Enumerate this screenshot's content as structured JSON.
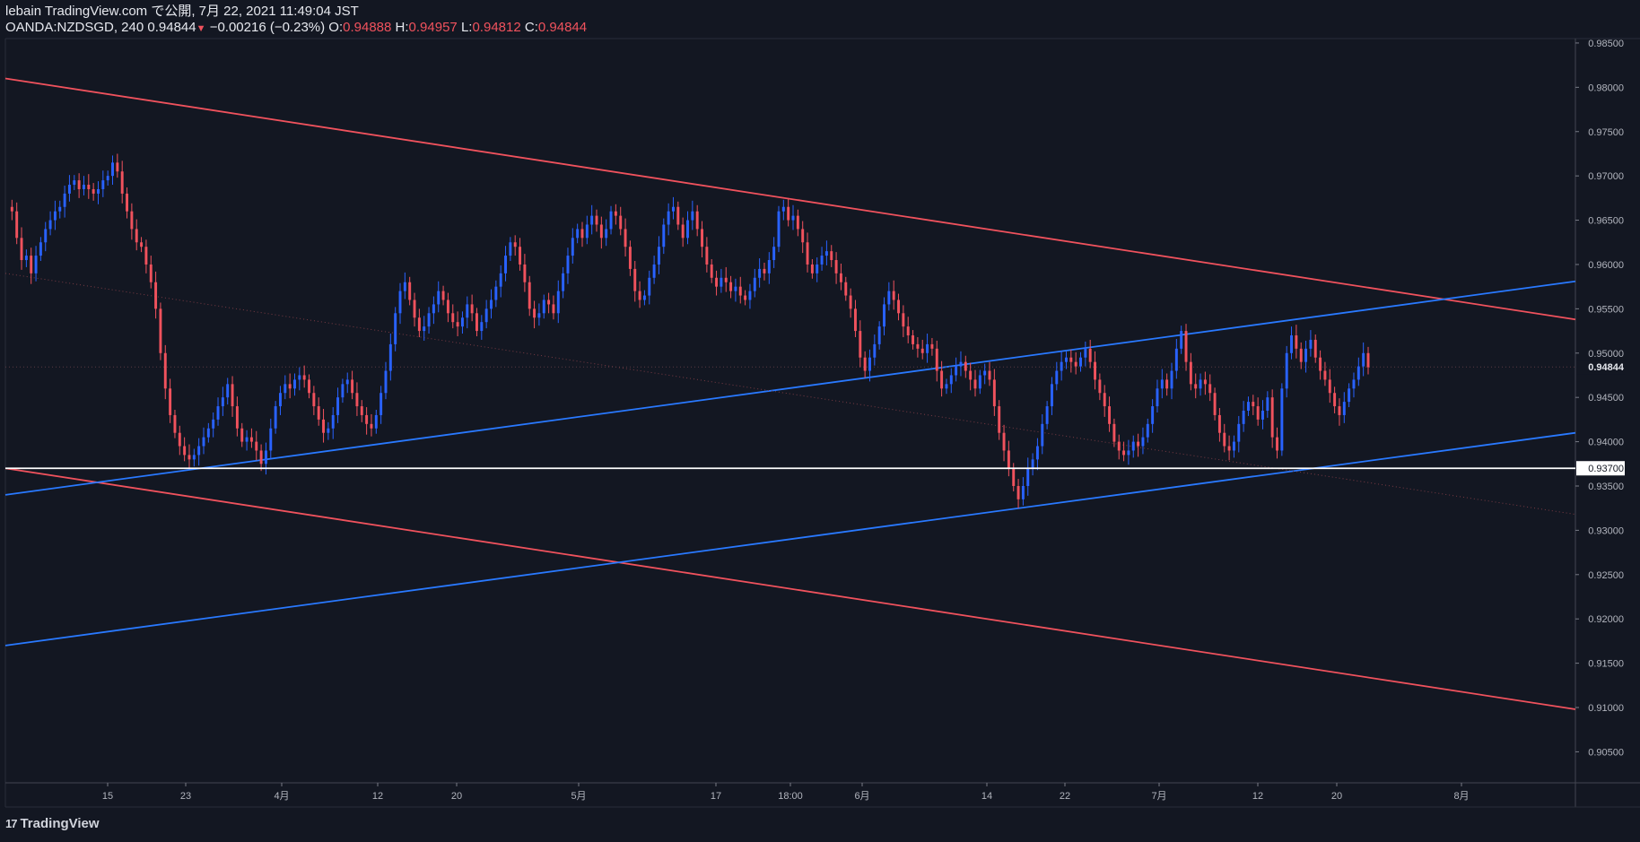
{
  "header": {
    "line1": "lebain TradingView.com で公開, 7月 22, 2021 11:49:04 JST",
    "symbol": "OANDA:NZDSGD, 240",
    "price": "0.94844",
    "change": "−0.00216 (−0.23%)",
    "o_label": "O:",
    "o_value": "0.94888",
    "h_label": "H:",
    "h_value": "0.94957",
    "l_label": "L:",
    "l_value": "0.94812",
    "c_label": "C:",
    "c_value": "0.94844"
  },
  "footer": {
    "brand": "TradingView"
  },
  "colors": {
    "background": "#131722",
    "up": "#2962ff",
    "down": "#f0525d",
    "red_line": "#f0525d",
    "blue_line": "#2979ff",
    "support": "#ffffff"
  },
  "chart_data": {
    "type": "line",
    "symbol": "OANDA:NZDSGD",
    "interval": "240",
    "ylim": [
      0.9015,
      0.9855
    ],
    "y_ticks": [
      "0.98500",
      "0.98000",
      "0.97500",
      "0.97000",
      "0.96500",
      "0.96000",
      "0.95500",
      "0.95000",
      "0.94500",
      "0.94000",
      "0.93500",
      "0.93000",
      "0.92500",
      "0.92000",
      "0.91500",
      "0.91000",
      "0.90500"
    ],
    "x_ticks": [
      "15",
      "23",
      "4月",
      "12",
      "20",
      "5月",
      "17",
      "18:00",
      "6月",
      "14",
      "22",
      "7月",
      "12",
      "20",
      "8月"
    ],
    "last_price": "0.94844",
    "support_label": "0.93700",
    "support_level": 0.937,
    "series": [
      {
        "values": [
          0.9665,
          0.966,
          0.963,
          0.9605,
          0.961,
          0.959,
          0.961,
          0.9625,
          0.964,
          0.965,
          0.966,
          0.9665,
          0.968,
          0.969,
          0.9695,
          0.9685,
          0.969,
          0.9685,
          0.968,
          0.9685,
          0.9695,
          0.97,
          0.9715,
          0.9705,
          0.968,
          0.966,
          0.964,
          0.9625,
          0.962,
          0.96,
          0.958,
          0.955,
          0.95,
          0.946,
          0.943,
          0.941,
          0.9395,
          0.9385,
          0.938,
          0.9385,
          0.9395,
          0.9405,
          0.9415,
          0.9425,
          0.944,
          0.945,
          0.9465,
          0.944,
          0.9415,
          0.94,
          0.9405,
          0.94,
          0.939,
          0.9375,
          0.939,
          0.9415,
          0.944,
          0.9455,
          0.9465,
          0.946,
          0.947,
          0.9475,
          0.947,
          0.9455,
          0.944,
          0.9425,
          0.941,
          0.9415,
          0.943,
          0.945,
          0.9465,
          0.947,
          0.9455,
          0.944,
          0.943,
          0.942,
          0.9415,
          0.943,
          0.9455,
          0.948,
          0.951,
          0.9545,
          0.957,
          0.958,
          0.956,
          0.954,
          0.9525,
          0.953,
          0.9545,
          0.9555,
          0.957,
          0.956,
          0.9545,
          0.9535,
          0.953,
          0.954,
          0.9555,
          0.9545,
          0.9525,
          0.9535,
          0.955,
          0.956,
          0.9575,
          0.959,
          0.961,
          0.9625,
          0.962,
          0.96,
          0.958,
          0.955,
          0.954,
          0.9545,
          0.956,
          0.9555,
          0.9545,
          0.957,
          0.959,
          0.961,
          0.963,
          0.964,
          0.963,
          0.9645,
          0.9655,
          0.9645,
          0.963,
          0.964,
          0.966,
          0.9655,
          0.964,
          0.962,
          0.9595,
          0.957,
          0.956,
          0.9565,
          0.9585,
          0.96,
          0.962,
          0.9645,
          0.966,
          0.9665,
          0.9645,
          0.963,
          0.965,
          0.966,
          0.964,
          0.962,
          0.96,
          0.9585,
          0.9575,
          0.9585,
          0.958,
          0.957,
          0.9575,
          0.9565,
          0.956,
          0.957,
          0.9585,
          0.9595,
          0.959,
          0.9605,
          0.962,
          0.966,
          0.9665,
          0.965,
          0.9655,
          0.964,
          0.9625,
          0.96,
          0.959,
          0.96,
          0.961,
          0.9615,
          0.9605,
          0.959,
          0.958,
          0.9565,
          0.955,
          0.9525,
          0.9495,
          0.948,
          0.9495,
          0.951,
          0.953,
          0.9555,
          0.957,
          0.956,
          0.9545,
          0.953,
          0.952,
          0.951,
          0.9505,
          0.95,
          0.951,
          0.9505,
          0.948,
          0.946,
          0.9465,
          0.9475,
          0.9485,
          0.949,
          0.948,
          0.947,
          0.946,
          0.9475,
          0.948,
          0.947,
          0.944,
          0.941,
          0.939,
          0.937,
          0.935,
          0.9335,
          0.935,
          0.937,
          0.938,
          0.9395,
          0.942,
          0.944,
          0.9465,
          0.948,
          0.949,
          0.9495,
          0.949,
          0.9485,
          0.9495,
          0.9505,
          0.949,
          0.947,
          0.9455,
          0.944,
          0.942,
          0.94,
          0.939,
          0.9385,
          0.939,
          0.94,
          0.9395,
          0.9405,
          0.942,
          0.944,
          0.946,
          0.947,
          0.946,
          0.948,
          0.9505,
          0.9525,
          0.949,
          0.9465,
          0.946,
          0.947,
          0.9465,
          0.9455,
          0.943,
          0.941,
          0.9395,
          0.939,
          0.94,
          0.942,
          0.9435,
          0.9445,
          0.944,
          0.9425,
          0.9435,
          0.945,
          0.9405,
          0.939,
          0.946,
          0.95,
          0.952,
          0.9505,
          0.949,
          0.9505,
          0.9515,
          0.9495,
          0.948,
          0.947,
          0.9455,
          0.944,
          0.943,
          0.9445,
          0.946,
          0.947,
          0.9485,
          0.95,
          0.9484
        ]
      }
    ],
    "trendlines": [
      {
        "name": "upper-red",
        "x0": 0,
        "y0": 0.981,
        "x1": 1,
        "y1": 0.9538
      },
      {
        "name": "lower-red",
        "x0": 0,
        "y0": 0.937,
        "x1": 1,
        "y1": 0.9098
      },
      {
        "name": "upper-blue",
        "x0": 0,
        "y0": 0.934,
        "x1": 1,
        "y1": 0.9581
      },
      {
        "name": "lower-blue",
        "x0": 0,
        "y0": 0.917,
        "x1": 1,
        "y1": 0.941
      },
      {
        "name": "mid-dotted",
        "x0": 0,
        "y0": 0.959,
        "x1": 1,
        "y1": 0.9318
      }
    ]
  }
}
